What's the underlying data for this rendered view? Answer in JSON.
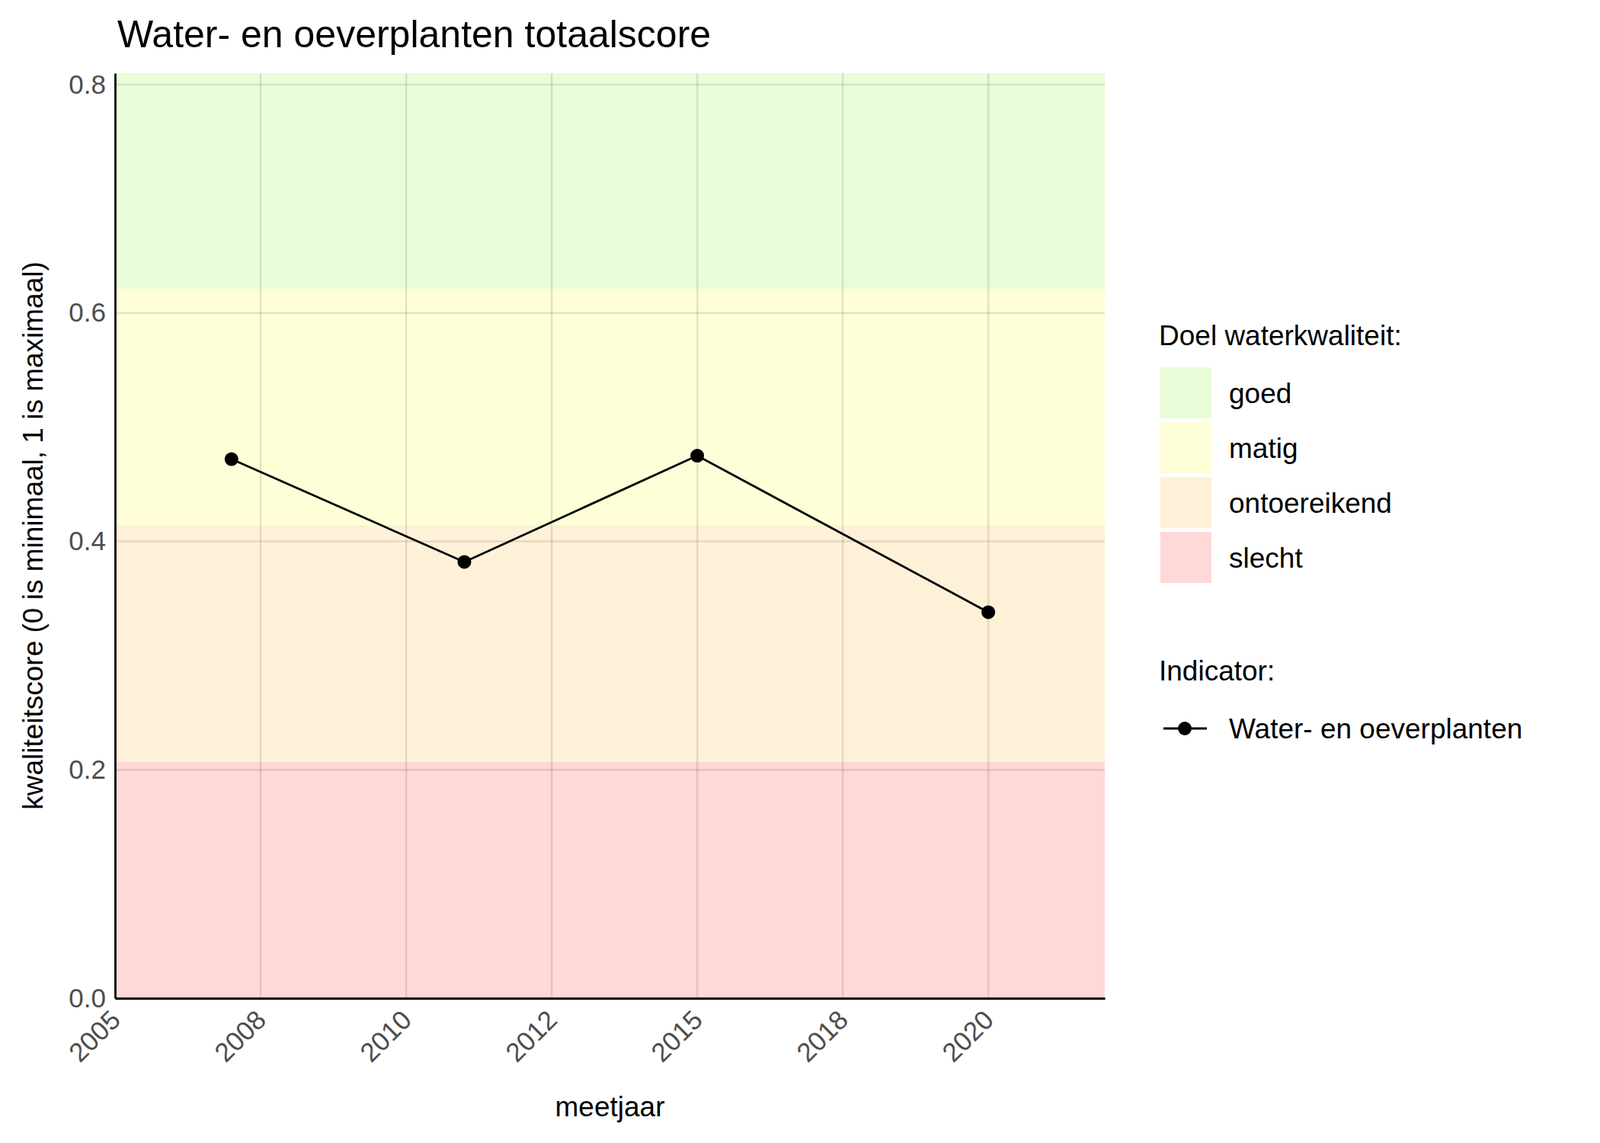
{
  "chart_data": {
    "type": "line",
    "title": "Water- en oeverplanten totaalscore",
    "x_label": "meetjaar",
    "y_label": "kwaliteitscore (0 is minimaal, 1 is maximaal)",
    "x": [
      2007,
      2011,
      2015,
      2020
    ],
    "series": [
      {
        "name": "Water- en oeverplanten",
        "color": "#000000",
        "marker": "circle",
        "values": [
          0.472,
          0.382,
          0.475,
          0.338
        ]
      }
    ],
    "xlim": [
      2005,
      2022
    ],
    "xticks": [
      2005,
      {
        "value": 2007.5,
        "label": "2008"
      },
      2010,
      {
        "value": 2012.5,
        "label": "2012"
      },
      2015,
      {
        "value": 2017.5,
        "label": "2018"
      },
      2020
    ],
    "ylim": [
      0,
      0.81
    ],
    "yticks": [
      {
        "value": 0,
        "label": "0.0"
      },
      0.2,
      0.4,
      0.6,
      0.8
    ],
    "grid": true,
    "band_legend_title": "Doel waterkwaliteit:",
    "series_legend_title": "Indicator:",
    "bands": [
      {
        "name": "goed",
        "color": "#e8fdd8",
        "from": 0.621,
        "to": 0.81
      },
      {
        "name": "matig",
        "color": "#fefed8",
        "from": 0.414,
        "to": 0.621
      },
      {
        "name": "ontoereikend",
        "color": "#fef1d8",
        "from": 0.207,
        "to": 0.414
      },
      {
        "name": "slecht",
        "color": "#ffd8d8",
        "from": 0,
        "to": 0.207
      }
    ]
  }
}
